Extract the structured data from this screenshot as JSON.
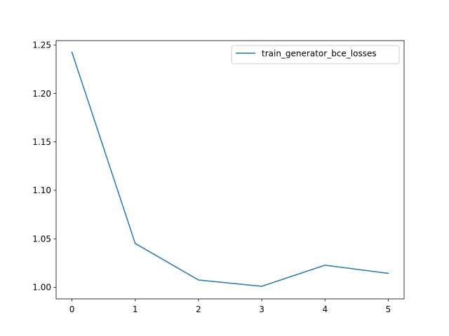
{
  "chart_data": {
    "type": "line",
    "title": "",
    "xlabel": "",
    "ylabel": "",
    "x": [
      0,
      1,
      2,
      3,
      4,
      5
    ],
    "series": [
      {
        "name": "train_generator_bce_losses",
        "values": [
          1.2425,
          1.0452,
          1.0075,
          1.001,
          1.0228,
          1.0143
        ],
        "color": "#1f77b4"
      }
    ],
    "xlim": [
      -0.25,
      5.25
    ],
    "ylim": [
      0.988,
      1.2545
    ],
    "x_ticks": [
      0,
      1,
      2,
      3,
      4,
      5
    ],
    "x_tick_labels": [
      "0",
      "1",
      "2",
      "3",
      "4",
      "5"
    ],
    "y_ticks": [
      1.0,
      1.05,
      1.1,
      1.15,
      1.2,
      1.25
    ],
    "y_tick_labels": [
      "1.00",
      "1.05",
      "1.10",
      "1.15",
      "1.20",
      "1.25"
    ],
    "grid": false,
    "legend_position": "top-right"
  }
}
